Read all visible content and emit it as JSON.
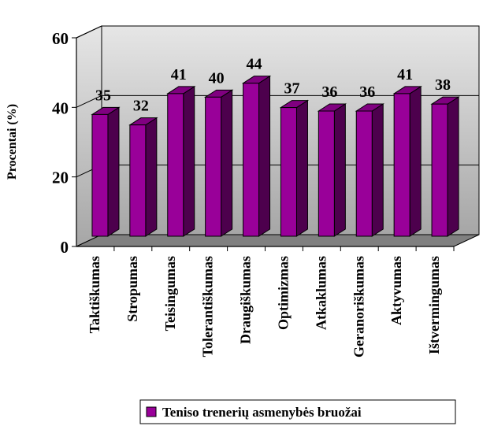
{
  "chart_data": {
    "type": "bar",
    "title": "",
    "xlabel": "",
    "ylabel": "Procentai (%)",
    "ylim": [
      0,
      60
    ],
    "yticks": [
      "0",
      "20",
      "40",
      "60"
    ],
    "grid": true,
    "three_d": true,
    "legend_position": "bottom",
    "categories": [
      "Taktiškumas",
      "Stropumas",
      "Teisingumas",
      "Tolerantiškumas",
      "Draugiškumas",
      "Optimizmas",
      "Atkaklumas",
      "Geranoriškumas",
      "Aktyvumas",
      "Ištvermingumas"
    ],
    "series": [
      {
        "name": "Teniso trenerių asmenybės bruožai",
        "values": [
          35,
          32,
          41,
          40,
          44,
          37,
          36,
          36,
          41,
          38
        ]
      }
    ],
    "data_labels": [
      "35",
      "32",
      "41",
      "40",
      "44",
      "37",
      "36",
      "36",
      "41",
      "38"
    ],
    "colors": {
      "bar_front": "#990099",
      "bar_side": "#4d004d",
      "bar_top": "#800080",
      "wall_light": "#e6e6e6",
      "wall_dark": "#a6a6a6",
      "floor": "#808080"
    }
  }
}
